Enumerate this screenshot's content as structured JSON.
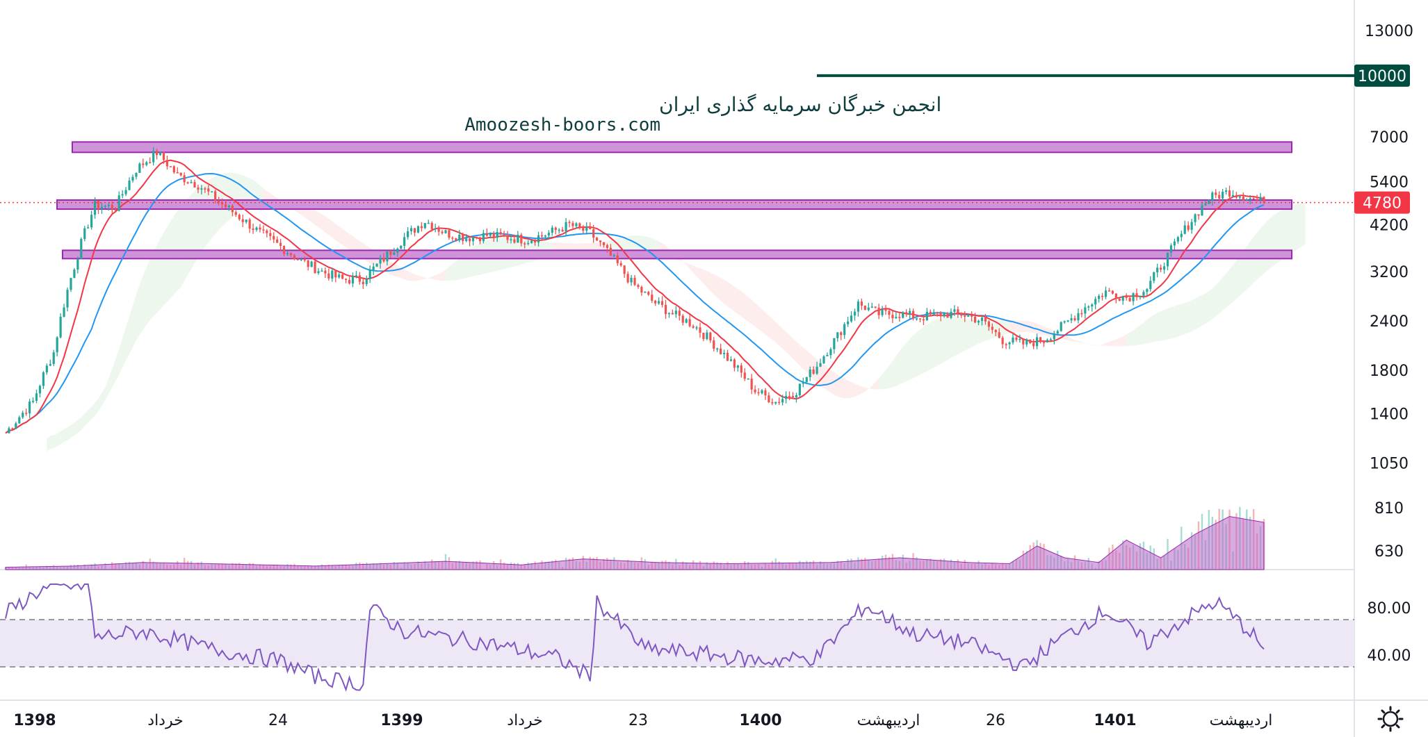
{
  "watermark": {
    "line1": "انجمن خبرگان سرمایه گذاری ایران",
    "line2": "Amoozesh-boors.com"
  },
  "chart_data": {
    "type": "candlestick",
    "price_scale": "log",
    "y_ticks": [
      13000,
      7000,
      5400,
      4200,
      3200,
      2400,
      1800,
      1400,
      1050,
      810,
      630
    ],
    "y_tick_labels": [
      "13000",
      "7000",
      "5400",
      "4200",
      "3200",
      "2400",
      "1800",
      "1400",
      "1050",
      "810",
      "630"
    ],
    "current_price": 4780,
    "current_price_label": "4780",
    "target_level": 10000,
    "target_level_label": "10000",
    "zones": [
      {
        "low": 6400,
        "high": 6800
      },
      {
        "low": 4600,
        "high": 4850
      },
      {
        "low": 3500,
        "high": 3620
      }
    ],
    "x_labels": [
      {
        "text": "1398",
        "bold": true
      },
      {
        "text": "خرداد",
        "bold": false
      },
      {
        "text": "24",
        "bold": false
      },
      {
        "text": "1399",
        "bold": true
      },
      {
        "text": "خرداد",
        "bold": false
      },
      {
        "text": "23",
        "bold": false
      },
      {
        "text": "1400",
        "bold": true
      },
      {
        "text": "اردیبهشت",
        "bold": false
      },
      {
        "text": "26",
        "bold": false
      },
      {
        "text": "1401",
        "bold": true
      },
      {
        "text": "اردیبهشت",
        "bold": false
      }
    ],
    "price_path": [
      [
        0,
        1250
      ],
      [
        8,
        1500
      ],
      [
        14,
        2000
      ],
      [
        20,
        3300
      ],
      [
        26,
        4700
      ],
      [
        32,
        4650
      ],
      [
        38,
        5800
      ],
      [
        44,
        6400
      ],
      [
        50,
        5600
      ],
      [
        56,
        5300
      ],
      [
        62,
        4800
      ],
      [
        68,
        4400
      ],
      [
        74,
        4000
      ],
      [
        80,
        3700
      ],
      [
        86,
        3400
      ],
      [
        92,
        3200
      ],
      [
        98,
        3050
      ],
      [
        104,
        3060
      ],
      [
        110,
        3450
      ],
      [
        116,
        3900
      ],
      [
        122,
        4300
      ],
      [
        128,
        4000
      ],
      [
        134,
        3900
      ],
      [
        140,
        3950
      ],
      [
        146,
        3900
      ],
      [
        152,
        3850
      ],
      [
        158,
        4000
      ],
      [
        164,
        4200
      ],
      [
        170,
        4000
      ],
      [
        176,
        3500
      ],
      [
        182,
        3000
      ],
      [
        188,
        2700
      ],
      [
        194,
        2500
      ],
      [
        200,
        2350
      ],
      [
        206,
        2100
      ],
      [
        212,
        1850
      ],
      [
        218,
        1600
      ],
      [
        224,
        1500
      ],
      [
        230,
        1600
      ],
      [
        236,
        1850
      ],
      [
        242,
        2200
      ],
      [
        248,
        2650
      ],
      [
        254,
        2500
      ],
      [
        260,
        2500
      ],
      [
        266,
        2450
      ],
      [
        272,
        2500
      ],
      [
        278,
        2500
      ],
      [
        284,
        2400
      ],
      [
        290,
        2150
      ],
      [
        296,
        2100
      ],
      [
        302,
        2150
      ],
      [
        308,
        2350
      ],
      [
        314,
        2600
      ],
      [
        320,
        2850
      ],
      [
        326,
        2750
      ],
      [
        332,
        2900
      ],
      [
        338,
        3500
      ],
      [
        344,
        4200
      ],
      [
        350,
        4900
      ],
      [
        356,
        5100
      ],
      [
        362,
        4900
      ],
      [
        366,
        4780
      ]
    ],
    "volume_path": [
      [
        0,
        0.02
      ],
      [
        20,
        0.03
      ],
      [
        40,
        0.06
      ],
      [
        60,
        0.05
      ],
      [
        90,
        0.03
      ],
      [
        110,
        0.05
      ],
      [
        128,
        0.07
      ],
      [
        150,
        0.04
      ],
      [
        168,
        0.09
      ],
      [
        190,
        0.06
      ],
      [
        210,
        0.05
      ],
      [
        240,
        0.06
      ],
      [
        260,
        0.1
      ],
      [
        280,
        0.06
      ],
      [
        292,
        0.05
      ],
      [
        300,
        0.2
      ],
      [
        308,
        0.1
      ],
      [
        318,
        0.06
      ],
      [
        326,
        0.25
      ],
      [
        336,
        0.1
      ],
      [
        346,
        0.3
      ],
      [
        356,
        0.45
      ],
      [
        366,
        0.4
      ]
    ],
    "rsi_ticks": [
      80,
      40
    ],
    "rsi_tick_labels": [
      "80.00",
      "40.00"
    ],
    "rsi_bands": [
      70,
      30
    ],
    "rsi_path": [
      [
        0,
        75
      ],
      [
        10,
        95
      ],
      [
        24,
        100
      ],
      [
        26,
        55
      ],
      [
        40,
        60
      ],
      [
        60,
        45
      ],
      [
        80,
        35
      ],
      [
        90,
        22
      ],
      [
        104,
        15
      ],
      [
        106,
        80
      ],
      [
        116,
        60
      ],
      [
        128,
        55
      ],
      [
        140,
        50
      ],
      [
        160,
        38
      ],
      [
        170,
        22
      ],
      [
        172,
        85
      ],
      [
        186,
        45
      ],
      [
        200,
        42
      ],
      [
        220,
        35
      ],
      [
        236,
        38
      ],
      [
        250,
        82
      ],
      [
        264,
        58
      ],
      [
        280,
        50
      ],
      [
        296,
        30
      ],
      [
        306,
        52
      ],
      [
        320,
        78
      ],
      [
        332,
        50
      ],
      [
        344,
        72
      ],
      [
        352,
        85
      ],
      [
        362,
        60
      ],
      [
        366,
        45
      ]
    ],
    "colors": {
      "up": "#26a69a",
      "down": "#ef5350",
      "ma_fast": "#f23645",
      "ma_slow": "#2196f3",
      "zone_fill": "#ce93d8",
      "zone_stroke": "#9c27b0",
      "rsi_line": "#7e57c2",
      "rsi_band": "#ede7f6",
      "volume_ma": "#ba68c8",
      "target_line": "#004d40",
      "price_badge": "#f23645"
    }
  }
}
